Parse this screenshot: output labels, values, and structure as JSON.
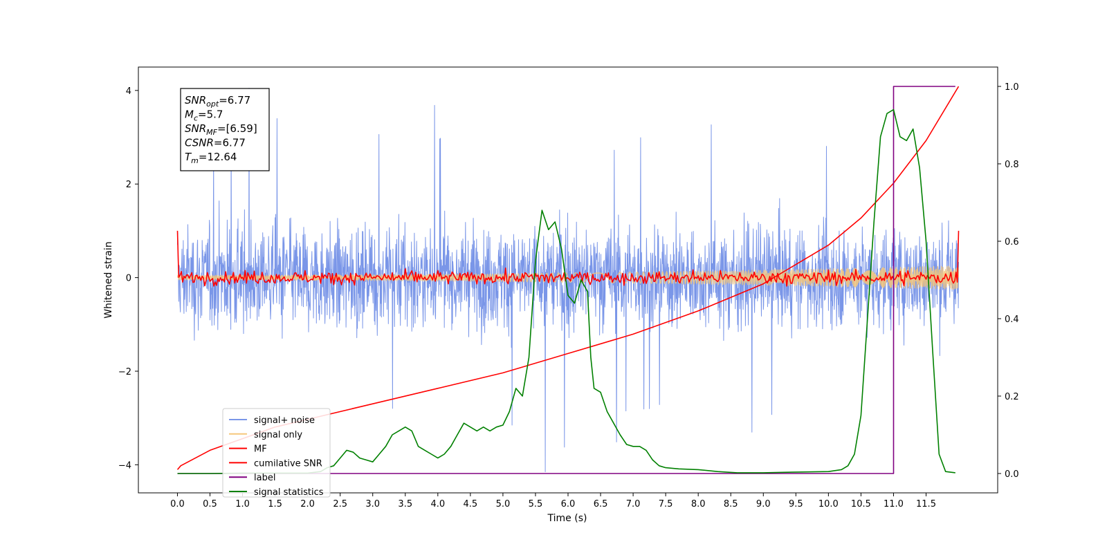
{
  "chart_data": {
    "type": "line",
    "xlabel": "Time (s)",
    "ylabel_left": "Whitened strain",
    "ylabel_right": "",
    "xlim": [
      -0.6,
      12.6
    ],
    "ylim_left": [
      -4.6,
      4.5
    ],
    "ylim_right": [
      -0.05,
      1.05
    ],
    "x_ticks": [
      "0.0",
      "0.5",
      "1.0",
      "1.5",
      "2.0",
      "2.5",
      "3.0",
      "3.5",
      "4.0",
      "4.5",
      "5.0",
      "5.5",
      "6.0",
      "6.5",
      "7.0",
      "7.5",
      "8.0",
      "8.5",
      "9.0",
      "9.5",
      "10.0",
      "10.5",
      "11.0",
      "11.5"
    ],
    "y_ticks_left": [
      "−4",
      "−2",
      "0",
      "2",
      "4"
    ],
    "y_ticks_right": [
      "0.0",
      "0.2",
      "0.4",
      "0.6",
      "0.8",
      "1.0"
    ],
    "grid": false,
    "legend_position": "lower-left",
    "annotation_box": [
      {
        "symbol": "SNR",
        "sub": "opt",
        "value": "=6.77"
      },
      {
        "symbol": "M",
        "sub": "c",
        "value": "=5.7"
      },
      {
        "symbol": "SNR",
        "sub": "MF",
        "value": "=[6.59]"
      },
      {
        "symbol": "CSNR",
        "sub": "",
        "value": "=6.77"
      },
      {
        "symbol": "T",
        "sub": "m",
        "value": "=12.64"
      }
    ],
    "series": [
      {
        "name": "signal+ noise",
        "color": "#7a96e8",
        "axis": "left",
        "style": "noise",
        "t_start": 0.0,
        "t_end": 12.0,
        "envelope": 1.2,
        "peak_max": 4.05,
        "peak_min": -4.15
      },
      {
        "name": "signal only",
        "color": "#f5c77a",
        "axis": "left",
        "style": "chirp",
        "t_start": 0.0,
        "t_end": 12.0,
        "amplitude_start": 0.05,
        "amplitude_end": 0.25
      },
      {
        "name": "MF",
        "color": "#ff0000",
        "axis": "left",
        "style": "noisy-line",
        "t_start": 0.0,
        "t_end": 12.0,
        "start_value": 1.0,
        "end_value": 1.0,
        "jitter": 0.12
      },
      {
        "name": "cumilative SNR",
        "color": "#ff0000",
        "axis": "right",
        "style": "line",
        "x": [
          0.0,
          0.05,
          0.5,
          1.0,
          1.5,
          2.0,
          3.0,
          4.0,
          5.0,
          6.0,
          7.0,
          8.0,
          9.0,
          10.0,
          10.5,
          11.0,
          11.5,
          12.0
        ],
        "y": [
          0.01,
          0.02,
          0.06,
          0.09,
          0.12,
          0.14,
          0.18,
          0.22,
          0.26,
          0.31,
          0.36,
          0.42,
          0.49,
          0.59,
          0.66,
          0.75,
          0.86,
          1.0
        ]
      },
      {
        "name": "label",
        "color": "#800080",
        "axis": "right",
        "style": "step",
        "x": [
          0.0,
          10.94,
          10.94,
          11.0,
          11.0,
          11.95
        ],
        "y": [
          0.0,
          0.0,
          0.0,
          0.0,
          1.0,
          1.0
        ]
      },
      {
        "name": "signal statistics",
        "color": "#008000",
        "axis": "right",
        "style": "line",
        "x": [
          0.0,
          0.5,
          1.0,
          1.5,
          2.0,
          2.2,
          2.3,
          2.4,
          2.5,
          2.6,
          2.7,
          2.8,
          2.9,
          3.0,
          3.1,
          3.2,
          3.3,
          3.4,
          3.5,
          3.6,
          3.7,
          3.8,
          3.9,
          4.0,
          4.1,
          4.2,
          4.3,
          4.4,
          4.5,
          4.6,
          4.7,
          4.8,
          4.9,
          5.0,
          5.1,
          5.2,
          5.3,
          5.4,
          5.5,
          5.6,
          5.7,
          5.8,
          5.9,
          6.0,
          6.1,
          6.2,
          6.3,
          6.35,
          6.4,
          6.5,
          6.6,
          6.7,
          6.8,
          6.9,
          7.0,
          7.1,
          7.2,
          7.3,
          7.4,
          7.5,
          7.7,
          8.0,
          8.3,
          8.6,
          9.0,
          9.3,
          9.6,
          10.0,
          10.2,
          10.3,
          10.4,
          10.5,
          10.6,
          10.7,
          10.8,
          10.9,
          11.0,
          11.1,
          11.2,
          11.3,
          11.4,
          11.5,
          11.6,
          11.7,
          11.8,
          11.95
        ],
        "y": [
          0.0,
          0.0,
          0.001,
          0.001,
          0.001,
          0.005,
          0.015,
          0.02,
          0.04,
          0.06,
          0.055,
          0.04,
          0.035,
          0.03,
          0.05,
          0.07,
          0.1,
          0.11,
          0.12,
          0.11,
          0.07,
          0.06,
          0.05,
          0.04,
          0.05,
          0.07,
          0.1,
          0.13,
          0.12,
          0.11,
          0.12,
          0.11,
          0.12,
          0.125,
          0.16,
          0.22,
          0.2,
          0.3,
          0.55,
          0.68,
          0.63,
          0.65,
          0.58,
          0.46,
          0.44,
          0.5,
          0.47,
          0.3,
          0.22,
          0.21,
          0.16,
          0.13,
          0.1,
          0.075,
          0.07,
          0.07,
          0.06,
          0.035,
          0.02,
          0.015,
          0.012,
          0.01,
          0.005,
          0.002,
          0.002,
          0.003,
          0.004,
          0.005,
          0.01,
          0.02,
          0.05,
          0.15,
          0.4,
          0.65,
          0.87,
          0.93,
          0.94,
          0.87,
          0.86,
          0.89,
          0.79,
          0.6,
          0.32,
          0.05,
          0.005,
          0.002
        ]
      }
    ]
  }
}
